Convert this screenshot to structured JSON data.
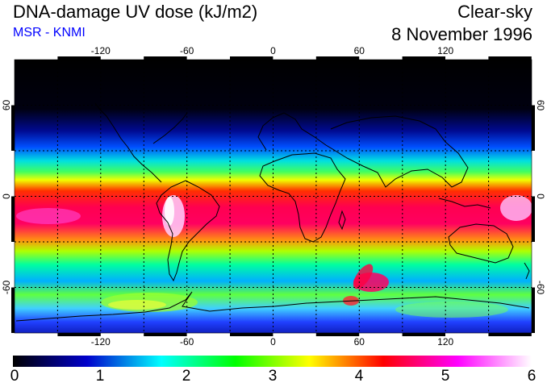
{
  "header": {
    "title": "DNA-damage UV dose (kJ/m2)",
    "subtitle": "MSR - KNMI",
    "sky_condition": "Clear-sky",
    "date": "8 November 1996"
  },
  "map": {
    "lon_range": [
      -180,
      180
    ],
    "lat_range": [
      -90,
      90
    ],
    "grid_lon_step": 30,
    "grid_lat_step": 30,
    "top_lon_labels": [
      "-120",
      "-60",
      "0",
      "60",
      "120"
    ],
    "bottom_lon_labels": [
      "-120",
      "-60",
      "0",
      "60",
      "120"
    ],
    "left_lat_labels": [
      "60",
      "0",
      "-60"
    ],
    "right_lat_labels": [
      "60",
      "0",
      "-60"
    ],
    "grid_style": "dotted",
    "coastlines": "black outlines"
  },
  "colorbar": {
    "min": 0,
    "max": 6,
    "labels": [
      "0",
      "1",
      "2",
      "3",
      "4",
      "5",
      "6"
    ],
    "colors": [
      "#000000",
      "#0000cc",
      "#00ffff",
      "#00ff00",
      "#ffff00",
      "#ff0000",
      "#ff00ff",
      "#ffffff"
    ]
  },
  "colors": {
    "subtitle": "#0000ff",
    "text": "#000000",
    "coast": "#000000"
  }
}
